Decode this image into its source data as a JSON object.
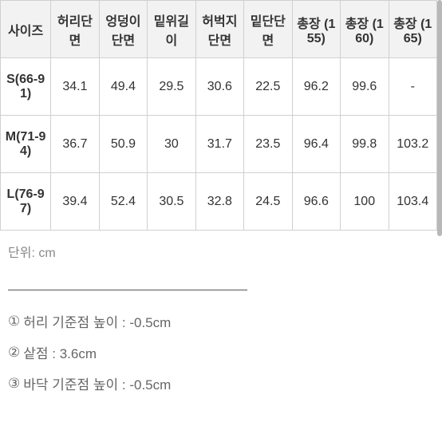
{
  "table": {
    "columns": [
      "사이즈",
      "허리단면",
      "엉덩이단면",
      "밑위길이",
      "허벅지단면",
      "밑단단면",
      "총장 (155)",
      "총장 (160)",
      "총장 (165)"
    ],
    "rows": [
      {
        "size": "S(66-91)",
        "cells": [
          "34.1",
          "49.4",
          "29.5",
          "30.6",
          "22.5",
          "96.2",
          "99.6",
          "-"
        ]
      },
      {
        "size": "M(71-94)",
        "cells": [
          "36.7",
          "50.9",
          "30",
          "31.7",
          "23.5",
          "96.4",
          "99.8",
          "103.2"
        ]
      },
      {
        "size": "L(76-97)",
        "cells": [
          "39.4",
          "52.4",
          "30.5",
          "32.8",
          "24.5",
          "96.6",
          "100",
          "103.4"
        ]
      }
    ],
    "header_bg": "#f2f2f2",
    "border_color": "#d0d0d0"
  },
  "unit_text": "단위: cm",
  "notes": [
    {
      "num": "①",
      "text": "허리 기준점 높이 : -0.5cm"
    },
    {
      "num": "②",
      "text": "샅점 : 3.6cm"
    },
    {
      "num": "③",
      "text": "바닥 기준점 높이 : -0.5cm"
    }
  ]
}
